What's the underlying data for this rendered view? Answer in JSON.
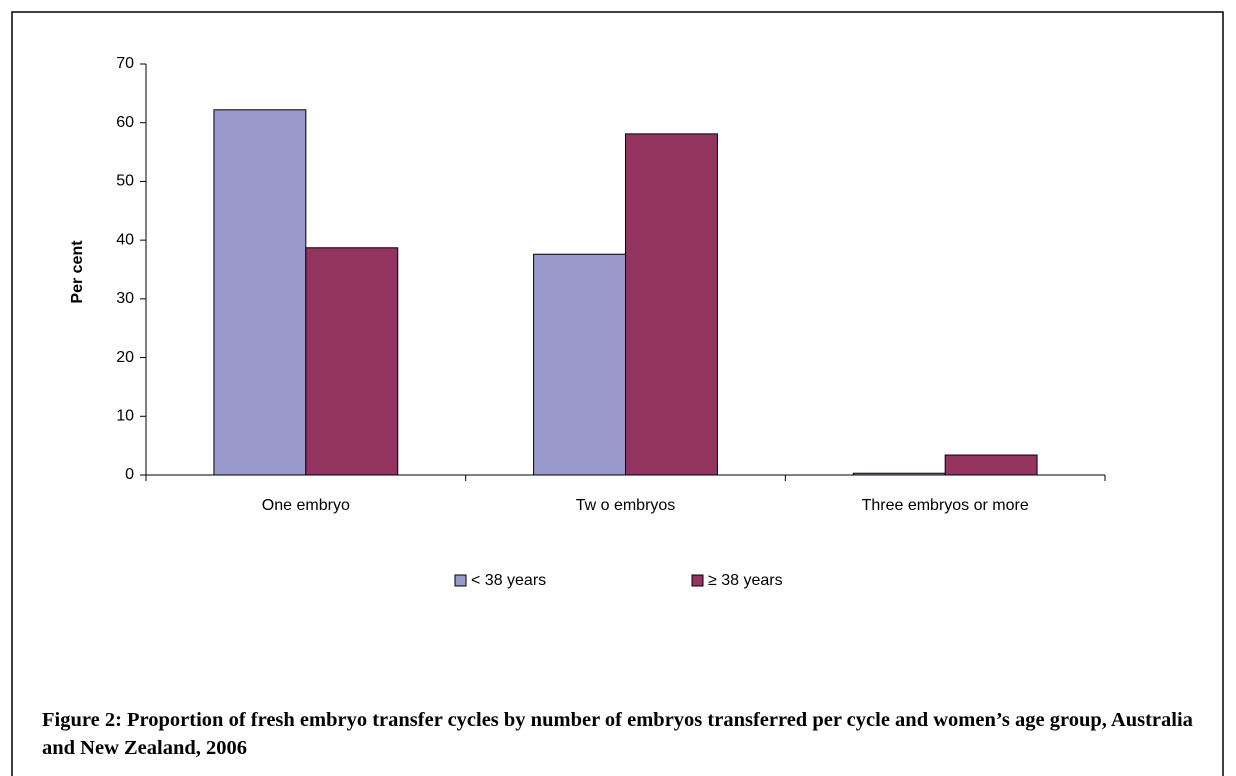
{
  "chart_data": {
    "type": "bar",
    "title": "Figure 2: Proportion of fresh embryo transfer cycles by number of embryos transferred per cycle and women’s age group, Australia and New Zealand, 2006",
    "y_label": "Per cent",
    "categories": [
      "One embryo",
      "Tw o embryos",
      "Three embryos or more"
    ],
    "series": [
      {
        "name": "< 38 years",
        "color": "#9999cc",
        "values": [
          62.2,
          37.6,
          0.3
        ]
      },
      {
        "name": "≥ 38 years",
        "color": "#943461",
        "values": [
          38.7,
          58.1,
          3.4
        ]
      }
    ],
    "ylim": [
      0,
      70
    ],
    "yticks": [
      0,
      10,
      20,
      30,
      40,
      50,
      60,
      70
    ],
    "grid": false,
    "legend": "bottom"
  }
}
